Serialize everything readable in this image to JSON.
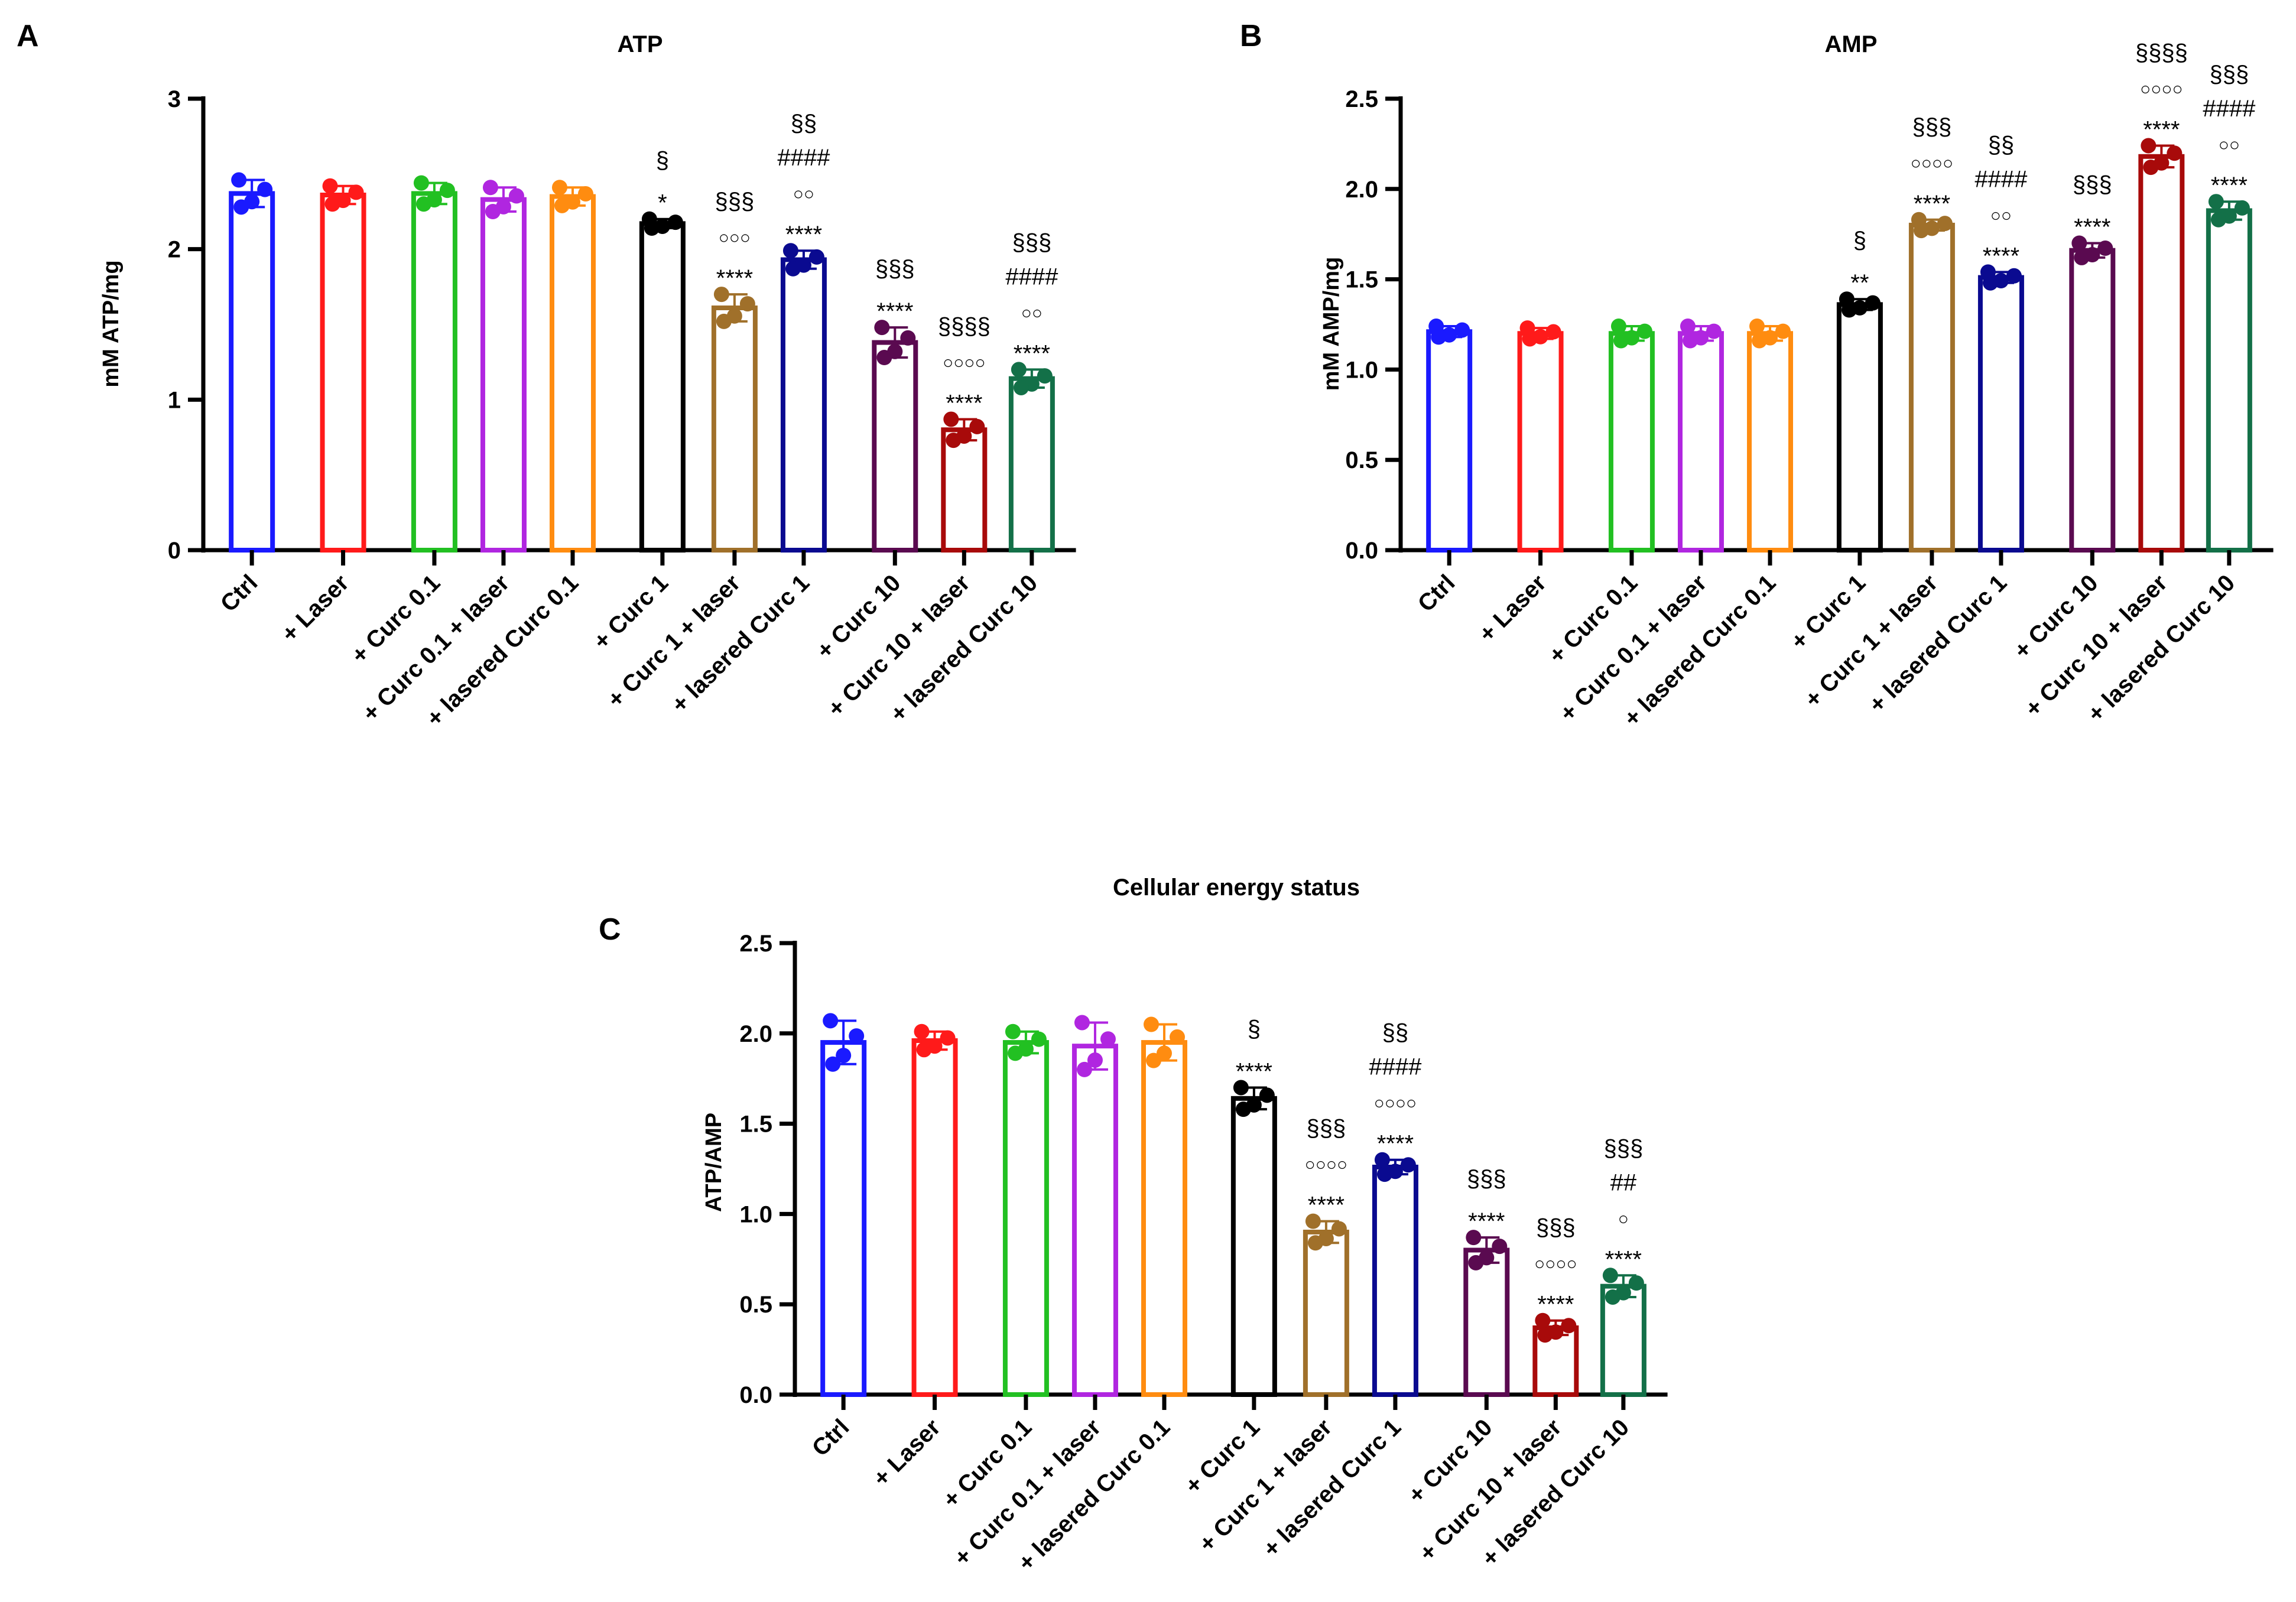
{
  "colors": [
    "#1a1aff",
    "#ff1a1a",
    "#22c022",
    "#b026e0",
    "#ff8c10",
    "#000000",
    "#a0702a",
    "#0a0a90",
    "#5a0a50",
    "#a80a0a",
    "#137048"
  ],
  "chart_data": [
    {
      "type": "bar",
      "panel_letter": "A",
      "title": "ATP",
      "ylabel": "mM ATP/mg",
      "ylim": [
        0,
        3
      ],
      "yticks": [
        "0",
        "1",
        "2",
        "3"
      ],
      "ytick_values": [
        0,
        1,
        2,
        3
      ],
      "categories": [
        "Ctrl",
        "+ Laser",
        "+ Curc 0.1",
        "+ Curc 0.1 + laser",
        "+ lasered Curc 0.1",
        "+ Curc 1",
        "+ Curc 1 + laser",
        "+ lasered Curc 1",
        "+ Curc 10",
        "+ Curc 10 + laser",
        "+ lasered Curc 10"
      ],
      "values": [
        2.37,
        2.36,
        2.37,
        2.33,
        2.35,
        2.17,
        1.61,
        1.93,
        1.38,
        0.8,
        1.14
      ],
      "sd": [
        0.09,
        0.06,
        0.07,
        0.08,
        0.06,
        0.03,
        0.09,
        0.06,
        0.1,
        0.07,
        0.06
      ],
      "annotations": [
        [],
        [],
        [],
        [],
        [],
        [
          "§",
          "*"
        ],
        [
          "§§§",
          "○○○",
          "****"
        ],
        [
          "§§",
          "####",
          "○○",
          "****"
        ],
        [
          "§§§",
          "****"
        ],
        [
          "§§§§",
          "○○○○",
          "****"
        ],
        [
          "§§§",
          "####",
          "○○",
          "****"
        ]
      ]
    },
    {
      "type": "bar",
      "panel_letter": "B",
      "title": "AMP",
      "ylabel": "mM AMP/mg",
      "ylim": [
        0,
        2.5
      ],
      "yticks": [
        "0.0",
        "0.5",
        "1.0",
        "1.5",
        "2.0",
        "2.5"
      ],
      "ytick_values": [
        0,
        0.5,
        1,
        1.5,
        2,
        2.5
      ],
      "categories": [
        "Ctrl",
        "+ Laser",
        "+ Curc 0.1",
        "+ Curc 0.1 + laser",
        "+ lasered Curc 0.1",
        "+ Curc 1",
        "+ Curc 1 + laser",
        "+ lasered Curc 1",
        "+ Curc 10",
        "+ Curc 10 + laser",
        "+ lasered Curc 10"
      ],
      "values": [
        1.21,
        1.2,
        1.2,
        1.2,
        1.2,
        1.36,
        1.8,
        1.51,
        1.66,
        2.18,
        1.88
      ],
      "sd": [
        0.03,
        0.03,
        0.04,
        0.04,
        0.04,
        0.03,
        0.03,
        0.03,
        0.04,
        0.06,
        0.05
      ],
      "annotations": [
        [],
        [],
        [],
        [],
        [],
        [
          "§",
          "**"
        ],
        [
          "§§§",
          "○○○○",
          "****"
        ],
        [
          "§§",
          "####",
          "○○",
          "****"
        ],
        [
          "§§§",
          "****"
        ],
        [
          "§§§§",
          "○○○○",
          "****"
        ],
        [
          "§§§",
          "####",
          "○○",
          "****"
        ]
      ]
    },
    {
      "type": "bar",
      "panel_letter": "C",
      "title": "Cellular energy status",
      "ylabel": "ATP/AMP",
      "ylim": [
        0,
        2.5
      ],
      "yticks": [
        "0.0",
        "0.5",
        "1.0",
        "1.5",
        "2.0",
        "2.5"
      ],
      "ytick_values": [
        0,
        0.5,
        1,
        1.5,
        2,
        2.5
      ],
      "categories": [
        "Ctrl",
        "+ Laser",
        "+ Curc 0.1",
        "+ Curc 0.1 + laser",
        "+ lasered Curc 0.1",
        "+ Curc 1",
        "+ Curc 1 + laser",
        "+ lasered Curc 1",
        "+ Curc 10",
        "+ Curc 10 + laser",
        "+ lasered Curc 10"
      ],
      "values": [
        1.95,
        1.96,
        1.95,
        1.93,
        1.95,
        1.64,
        0.9,
        1.26,
        0.8,
        0.37,
        0.6
      ],
      "sd": [
        0.12,
        0.05,
        0.06,
        0.13,
        0.1,
        0.06,
        0.06,
        0.04,
        0.07,
        0.04,
        0.06
      ],
      "annotations": [
        [],
        [],
        [],
        [],
        [],
        [
          "§",
          "****"
        ],
        [
          "§§§",
          "○○○○",
          "****"
        ],
        [
          "§§",
          "####",
          "○○○○",
          "****"
        ],
        [
          "§§§",
          "****"
        ],
        [
          "§§§",
          "○○○○",
          "****"
        ],
        [
          "§§§",
          "##",
          "○",
          "****"
        ]
      ]
    }
  ]
}
